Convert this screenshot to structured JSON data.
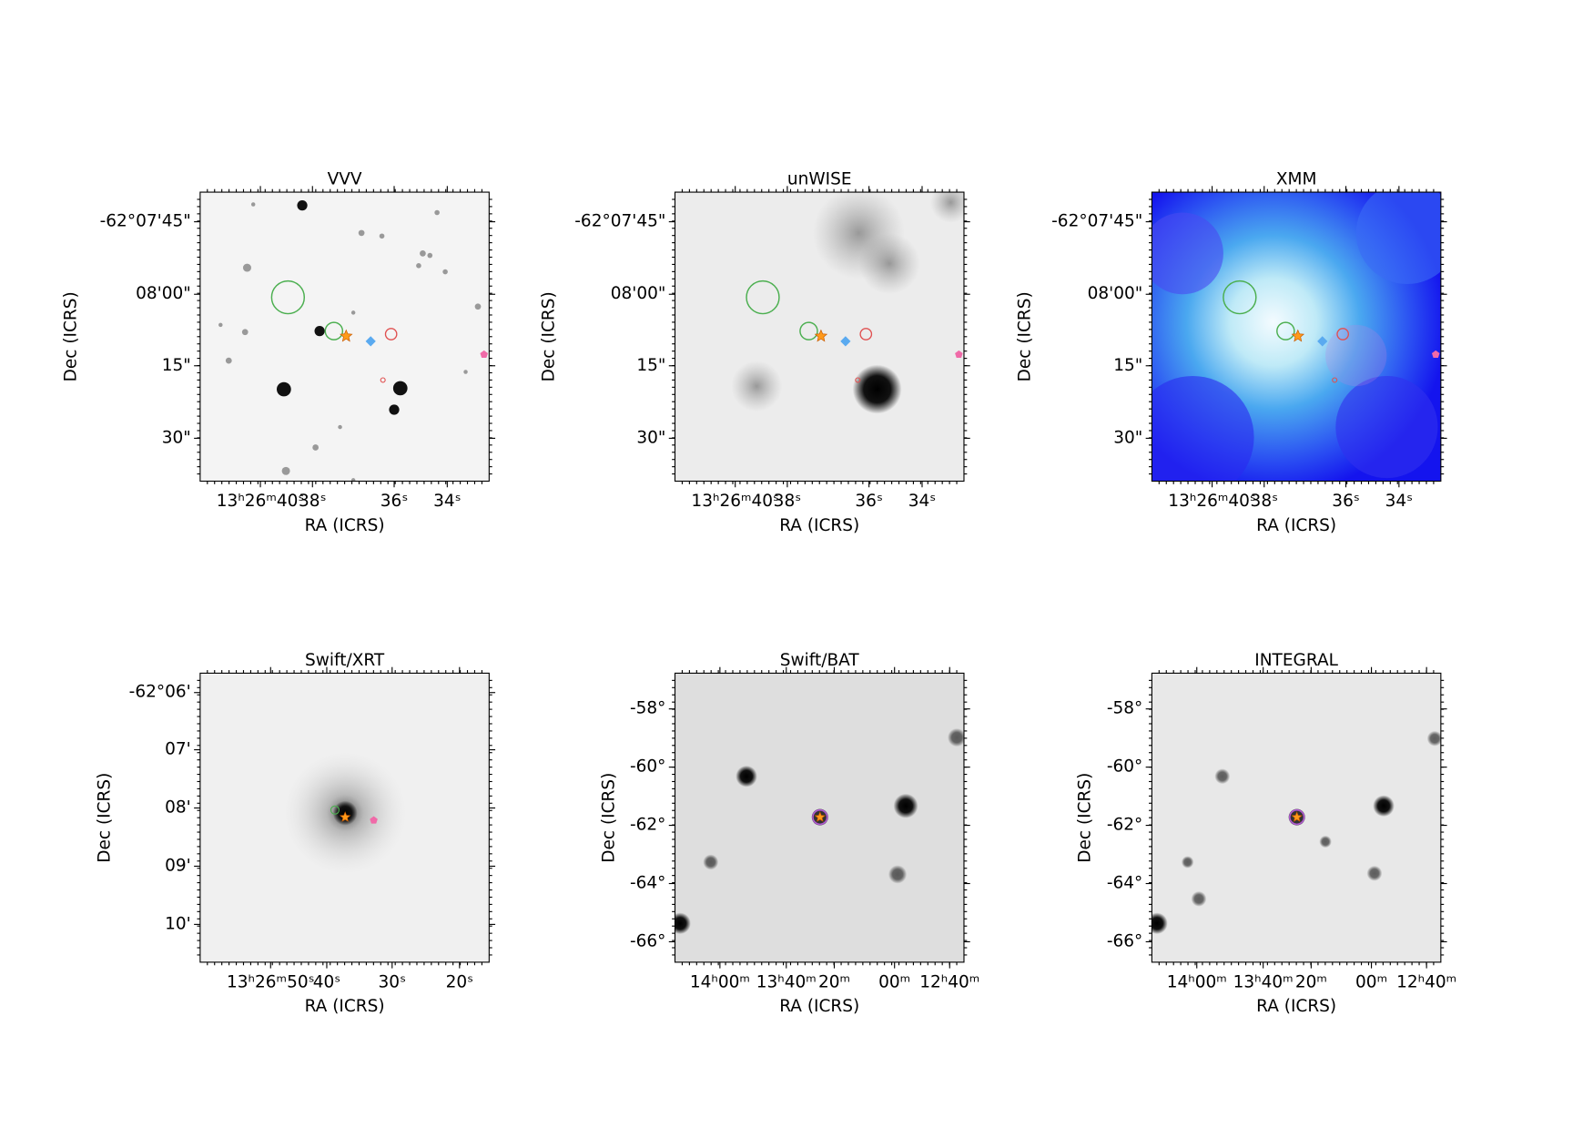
{
  "panels": [
    {
      "title": "VVV",
      "x_label": "RA (ICRS)",
      "y_label": "Dec (ICRS)",
      "x_ticks": [
        "13ʰ26ᵐ40ˢ",
        "38ˢ",
        "36ˢ",
        "34ˢ"
      ],
      "y_ticks": [
        "-62°07'45\"",
        "08'00\"",
        "15\"",
        "30\""
      ]
    },
    {
      "title": "unWISE",
      "x_label": "RA (ICRS)",
      "y_label": "Dec (ICRS)",
      "x_ticks": [
        "13ʰ26ᵐ40ˢ",
        "38ˢ",
        "36ˢ",
        "34ˢ"
      ],
      "y_ticks": [
        "-62°07'45\"",
        "08'00\"",
        "15\"",
        "30\""
      ]
    },
    {
      "title": "XMM",
      "x_label": "RA (ICRS)",
      "y_label": "Dec (ICRS)",
      "x_ticks": [
        "13ʰ26ᵐ40ˢ",
        "38ˢ",
        "36ˢ",
        "34ˢ"
      ],
      "y_ticks": [
        "-62°07'45\"",
        "08'00\"",
        "15\"",
        "30\""
      ]
    },
    {
      "title": "Swift/XRT",
      "x_label": "RA (ICRS)",
      "y_label": "Dec (ICRS)",
      "x_ticks": [
        "13ʰ26ᵐ50ˢ",
        "40ˢ",
        "30ˢ",
        "20ˢ"
      ],
      "y_ticks": [
        "-62°06'",
        "07'",
        "08'",
        "09'",
        "10'"
      ]
    },
    {
      "title": "Swift/BAT",
      "x_label": "RA (ICRS)",
      "y_label": "Dec (ICRS)",
      "x_ticks": [
        "14ʰ00ᵐ",
        "13ʰ40ᵐ",
        "20ᵐ",
        "00ᵐ",
        "12ʰ40ᵐ"
      ],
      "y_ticks": [
        "-58°",
        "-60°",
        "-62°",
        "-64°",
        "-66°"
      ]
    },
    {
      "title": "INTEGRAL",
      "x_label": "RA (ICRS)",
      "y_label": "Dec (ICRS)",
      "x_ticks": [
        "14ʰ00ᵐ",
        "13ʰ40ᵐ",
        "20ᵐ",
        "00ᵐ",
        "12ʰ40ᵐ"
      ],
      "y_ticks": [
        "-58°",
        "-60°",
        "-62°",
        "-64°",
        "-66°"
      ]
    }
  ]
}
